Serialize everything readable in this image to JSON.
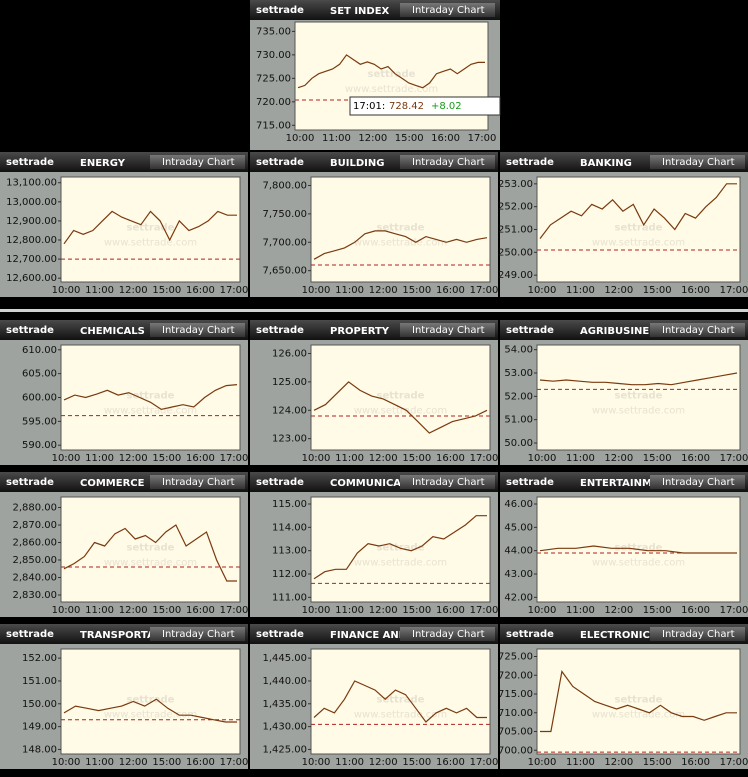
{
  "chart_data": [
    {
      "type": "line",
      "title": "SET INDEX",
      "brand": "settrade",
      "button": "Intraday Chart",
      "watermark": "settrade",
      "watermark_url": "www.settrade.com",
      "color": "#7a3a10",
      "ref_color": "#b02020",
      "ylim": [
        714,
        737
      ],
      "yticks": [
        {
          "value": 715,
          "label": "715.00"
        },
        {
          "value": 720,
          "label": "720.00"
        },
        {
          "value": 725,
          "label": "725.00"
        },
        {
          "value": 730,
          "label": "730.00"
        },
        {
          "value": 735,
          "label": "735.00"
        }
      ],
      "xticks": [
        "10:00",
        "11:00",
        "12:00",
        "15:00",
        "16:00",
        "17:00"
      ],
      "reference": 720.4,
      "values": [
        723,
        723.5,
        725,
        726,
        726.5,
        727,
        728,
        730,
        729,
        728,
        728.5,
        728,
        727,
        727.5,
        726,
        725,
        724,
        723.5,
        723,
        724,
        726,
        726.5,
        727,
        726,
        727,
        728,
        728.4,
        728.4
      ],
      "tooltip": {
        "time": "17:01:",
        "value": "728.42",
        "change": "+8.02"
      }
    },
    {
      "type": "line",
      "title": "ENERGY",
      "brand": "settrade",
      "button": "Intraday Chart",
      "watermark": "settrade",
      "watermark_url": "www.settrade.com",
      "color": "#7a3a10",
      "ref_color": "#b02020",
      "ylim": [
        12580,
        13130
      ],
      "yticks": [
        {
          "value": 12600,
          "label": "12,600.00"
        },
        {
          "value": 12700,
          "label": "12,700.00"
        },
        {
          "value": 12800,
          "label": "12,800.00"
        },
        {
          "value": 12900,
          "label": "12,900.00"
        },
        {
          "value": 13000,
          "label": "13,000.00"
        },
        {
          "value": 13100,
          "label": "13,100.00"
        }
      ],
      "xticks": [
        "10:00",
        "11:00",
        "12:00",
        "15:00",
        "16:00",
        "17:00"
      ],
      "reference": 12700,
      "values": [
        12780,
        12850,
        12830,
        12850,
        12900,
        12950,
        12920,
        12900,
        12880,
        12950,
        12900,
        12800,
        12900,
        12850,
        12870,
        12900,
        12950,
        12930,
        12930
      ]
    },
    {
      "type": "line",
      "title": "BUILDING",
      "brand": "settrade",
      "button": "Intraday Chart",
      "watermark": "settrade",
      "watermark_url": "www.settrade.com",
      "color": "#7a3a10",
      "ref_color": "#b02020",
      "ylim": [
        7630,
        7815
      ],
      "yticks": [
        {
          "value": 7650,
          "label": "7,650.00"
        },
        {
          "value": 7700,
          "label": "7,700.00"
        },
        {
          "value": 7750,
          "label": "7,750.00"
        },
        {
          "value": 7800,
          "label": "7,800.00"
        }
      ],
      "xticks": [
        "10:00",
        "11:00",
        "12:00",
        "15:00",
        "16:00",
        "17:00"
      ],
      "reference": 7660,
      "values": [
        7670,
        7680,
        7685,
        7690,
        7700,
        7715,
        7720,
        7720,
        7715,
        7710,
        7700,
        7710,
        7705,
        7700,
        7705,
        7700,
        7705,
        7708
      ]
    },
    {
      "type": "line",
      "title": "BANKING",
      "brand": "settrade",
      "button": "Intraday Chart",
      "watermark": "settrade",
      "watermark_url": "www.settrade.com",
      "color": "#7a3a10",
      "ref_color": "#b02020",
      "ylim": [
        248.7,
        253.3
      ],
      "yticks": [
        {
          "value": 249,
          "label": "249.00"
        },
        {
          "value": 250,
          "label": "250.00"
        },
        {
          "value": 251,
          "label": "251.00"
        },
        {
          "value": 252,
          "label": "252.00"
        },
        {
          "value": 253,
          "label": "253.00"
        }
      ],
      "xticks": [
        "10:00",
        "11:00",
        "12:00",
        "15:00",
        "16:00",
        "17:00"
      ],
      "reference": 250.1,
      "values": [
        250.6,
        251.2,
        251.5,
        251.8,
        251.6,
        252.1,
        251.9,
        252.3,
        251.8,
        252.1,
        251.2,
        251.9,
        251.5,
        251,
        251.7,
        251.5,
        252,
        252.4,
        253,
        253
      ]
    },
    {
      "type": "line",
      "title": "CHEMICALS",
      "brand": "settrade",
      "button": "Intraday Chart",
      "watermark": "settrade",
      "watermark_url": "www.settrade.com",
      "color": "#7a3a10",
      "ref_color": "#b02020",
      "ylim": [
        589,
        611
      ],
      "yticks": [
        {
          "value": 590,
          "label": "590.00"
        },
        {
          "value": 595,
          "label": "595.00"
        },
        {
          "value": 600,
          "label": "600.00"
        },
        {
          "value": 605,
          "label": "605.00"
        },
        {
          "value": 610,
          "label": "610.00"
        }
      ],
      "xticks": [
        "10:00",
        "11:00",
        "12:00",
        "15:00",
        "16:00",
        "17:00"
      ],
      "reference": 596.2,
      "values": [
        599.5,
        600.5,
        600,
        600.7,
        601.5,
        600.5,
        601,
        600,
        599,
        597.5,
        598,
        598.5,
        598,
        600,
        601.5,
        602.5,
        602.7
      ]
    },
    {
      "type": "line",
      "title": "PROPERTY",
      "brand": "settrade",
      "button": "Intraday Chart",
      "watermark": "settrade",
      "watermark_url": "www.settrade.com",
      "color": "#7a3a10",
      "ref_color": "#b02020",
      "ylim": [
        122.6,
        126.3
      ],
      "yticks": [
        {
          "value": 123,
          "label": "123.00"
        },
        {
          "value": 124,
          "label": "124.00"
        },
        {
          "value": 125,
          "label": "125.00"
        },
        {
          "value": 126,
          "label": "126.00"
        }
      ],
      "xticks": [
        "10:00",
        "11:00",
        "12:00",
        "15:00",
        "16:00",
        "17:00"
      ],
      "reference": 123.8,
      "values": [
        124,
        124.2,
        124.6,
        125,
        124.7,
        124.5,
        124.4,
        124.2,
        124,
        123.6,
        123.2,
        123.4,
        123.6,
        123.7,
        123.8,
        124
      ]
    },
    {
      "type": "line",
      "title": "AGRIBUSINESS",
      "brand": "settrade",
      "button": "Intraday Chart",
      "watermark": "settrade",
      "watermark_url": "www.settrade.com",
      "color": "#7a3a10",
      "ref_color": "#b02020",
      "ylim": [
        49.7,
        54.2
      ],
      "yticks": [
        {
          "value": 50,
          "label": "50.00"
        },
        {
          "value": 51,
          "label": "51.00"
        },
        {
          "value": 52,
          "label": "52.00"
        },
        {
          "value": 53,
          "label": "53.00"
        },
        {
          "value": 54,
          "label": "54.00"
        }
      ],
      "xticks": [
        "10:00",
        "11:00",
        "12:00",
        "15:00",
        "16:00",
        "17:00"
      ],
      "reference": 52.3,
      "values": [
        52.7,
        52.65,
        52.7,
        52.65,
        52.6,
        52.6,
        52.55,
        52.5,
        52.5,
        52.55,
        52.5,
        52.6,
        52.7,
        52.8,
        52.9,
        53
      ]
    },
    {
      "type": "line",
      "title": "COMMERCE",
      "brand": "settrade",
      "button": "Intraday Chart",
      "watermark": "settrade",
      "watermark_url": "www.settrade.com",
      "color": "#7a3a10",
      "ref_color": "#b02020",
      "ylim": [
        2826,
        2886
      ],
      "yticks": [
        {
          "value": 2830,
          "label": "2,830.00"
        },
        {
          "value": 2840,
          "label": "2,840.00"
        },
        {
          "value": 2850,
          "label": "2,850.00"
        },
        {
          "value": 2860,
          "label": "2,860.00"
        },
        {
          "value": 2870,
          "label": "2,870.00"
        },
        {
          "value": 2880,
          "label": "2,880.00"
        }
      ],
      "xticks": [
        "10:00",
        "11:00",
        "12:00",
        "15:00",
        "16:00",
        "17:00"
      ],
      "reference": 2846,
      "values": [
        2845,
        2848,
        2852,
        2860,
        2858,
        2865,
        2868,
        2862,
        2864,
        2860,
        2866,
        2870,
        2858,
        2862,
        2866,
        2850,
        2838,
        2838
      ]
    },
    {
      "type": "line",
      "title": "COMMUNICATION",
      "brand": "settrade",
      "button": "Intraday Chart",
      "watermark": "settrade",
      "watermark_url": "www.settrade.com",
      "color": "#7a3a10",
      "ref_color": "#b02020",
      "ylim": [
        110.8,
        115.3
      ],
      "yticks": [
        {
          "value": 111,
          "label": "111.00"
        },
        {
          "value": 112,
          "label": "112.00"
        },
        {
          "value": 113,
          "label": "113.00"
        },
        {
          "value": 114,
          "label": "114.00"
        },
        {
          "value": 115,
          "label": "115.00"
        }
      ],
      "xticks": [
        "10:00",
        "11:00",
        "12:00",
        "15:00",
        "16:00",
        "17:00"
      ],
      "reference": 111.6,
      "values": [
        111.8,
        112.1,
        112.2,
        112.2,
        112.9,
        113.3,
        113.2,
        113.3,
        113.1,
        113,
        113.2,
        113.6,
        113.5,
        113.8,
        114.1,
        114.5,
        114.5
      ]
    },
    {
      "type": "line",
      "title": "ENTERTAINMENT",
      "brand": "settrade",
      "button": "Intraday Chart",
      "watermark": "settrade",
      "watermark_url": "www.settrade.com",
      "color": "#7a3a10",
      "ref_color": "#b02020",
      "ylim": [
        41.8,
        46.3
      ],
      "yticks": [
        {
          "value": 42,
          "label": "42.00"
        },
        {
          "value": 43,
          "label": "43.00"
        },
        {
          "value": 44,
          "label": "44.00"
        },
        {
          "value": 45,
          "label": "45.00"
        },
        {
          "value": 46,
          "label": "46.00"
        }
      ],
      "xticks": [
        "10:00",
        "11:00",
        "12:00",
        "15:00",
        "16:00",
        "17:00"
      ],
      "reference": 43.9,
      "values": [
        44,
        44.1,
        44.1,
        44.2,
        44.1,
        44.1,
        44,
        44,
        43.9,
        43.9,
        43.9,
        43.9
      ]
    },
    {
      "type": "line",
      "title": "TRANSPORTATION",
      "brand": "settrade",
      "button": "Intraday Chart",
      "watermark": "settrade",
      "watermark_url": "www.settrade.com",
      "color": "#7a3a10",
      "ref_color": "#b02020",
      "ylim": [
        147.8,
        152.4
      ],
      "yticks": [
        {
          "value": 148,
          "label": "148.00"
        },
        {
          "value": 149,
          "label": "149.00"
        },
        {
          "value": 150,
          "label": "150.00"
        },
        {
          "value": 151,
          "label": "151.00"
        },
        {
          "value": 152,
          "label": "152.00"
        }
      ],
      "xticks": [
        "10:00",
        "11:00",
        "12:00",
        "15:00",
        "16:00",
        "17:00"
      ],
      "reference": 149.3,
      "values": [
        149.6,
        149.9,
        149.8,
        149.7,
        149.8,
        149.9,
        150.1,
        149.9,
        150.2,
        149.8,
        149.5,
        149.5,
        149.4,
        149.3,
        149.2,
        149.2
      ]
    },
    {
      "type": "line",
      "title": "FINANCE AND SECURITIES",
      "brand": "settrade",
      "button": "Intraday Chart",
      "watermark": "settrade",
      "watermark_url": "www.settrade.com",
      "color": "#7a3a10",
      "ref_color": "#b02020",
      "ylim": [
        1424,
        1447
      ],
      "yticks": [
        {
          "value": 1425,
          "label": "1,425.00"
        },
        {
          "value": 1430,
          "label": "1,430.00"
        },
        {
          "value": 1435,
          "label": "1,435.00"
        },
        {
          "value": 1440,
          "label": "1,440.00"
        },
        {
          "value": 1445,
          "label": "1,445.00"
        }
      ],
      "xticks": [
        "10:00",
        "11:00",
        "12:00",
        "15:00",
        "16:00",
        "17:00"
      ],
      "reference": 1430.5,
      "values": [
        1432,
        1434,
        1433,
        1436,
        1440,
        1439,
        1438,
        1436,
        1438,
        1437,
        1434,
        1431,
        1433,
        1434,
        1433,
        1434,
        1432,
        1432
      ]
    },
    {
      "type": "line",
      "title": "ELECTRONIC",
      "brand": "settrade",
      "button": "Intraday Chart",
      "watermark": "settrade",
      "watermark_url": "www.settrade.com",
      "color": "#7a3a10",
      "ref_color": "#b02020",
      "ylim": [
        699,
        727
      ],
      "yticks": [
        {
          "value": 700,
          "label": "700.00"
        },
        {
          "value": 705,
          "label": "705.00"
        },
        {
          "value": 710,
          "label": "710.00"
        },
        {
          "value": 715,
          "label": "715.00"
        },
        {
          "value": 720,
          "label": "720.00"
        },
        {
          "value": 725,
          "label": "725.00"
        }
      ],
      "xticks": [
        "10:00",
        "11:00",
        "12:00",
        "15:00",
        "16:00",
        "17:00"
      ],
      "reference": 699.5,
      "values": [
        705,
        705,
        721,
        717,
        715,
        713,
        712,
        711,
        712,
        711,
        710,
        712,
        710,
        709,
        709,
        708,
        709,
        710,
        710
      ]
    }
  ]
}
